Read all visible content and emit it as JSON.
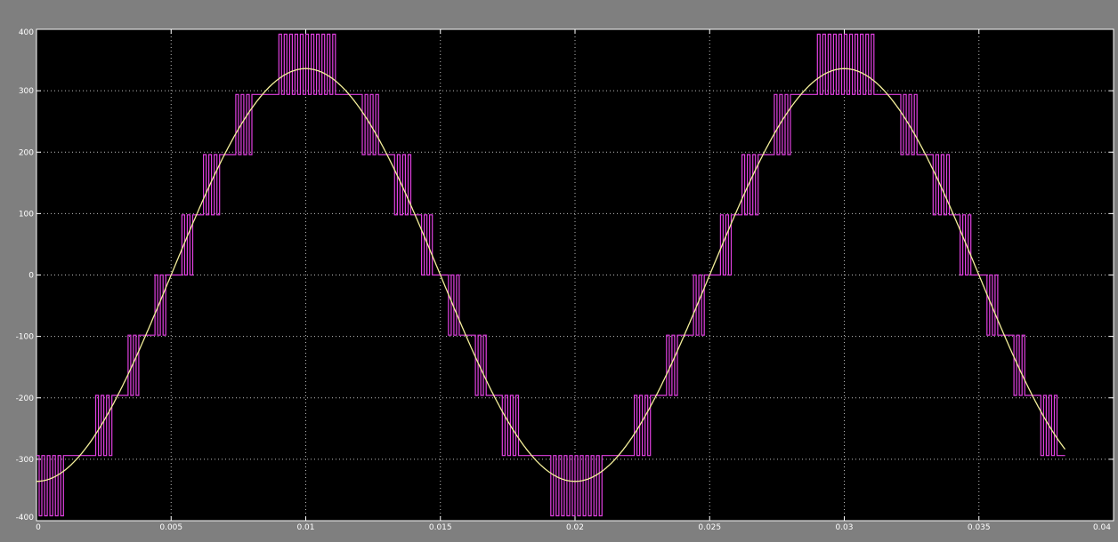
{
  "chart_data": {
    "type": "line",
    "title": "",
    "xlabel": "",
    "ylabel": "",
    "xlim": [
      0,
      0.04
    ],
    "ylim": [
      -400,
      400
    ],
    "grid": true,
    "x_ticks": [
      0,
      0.005,
      0.01,
      0.015,
      0.02,
      0.025,
      0.03,
      0.035,
      0.04
    ],
    "x_tick_labels": [
      "0",
      "0.005",
      "0.01",
      "0.015",
      "0.02",
      "0.025",
      "0.03",
      "0.035",
      "0.04"
    ],
    "y_ticks": [
      400,
      300,
      200,
      100,
      0,
      -100,
      -200,
      -300,
      -400
    ],
    "y_tick_labels": [
      "400",
      "300",
      "200",
      "100",
      "0",
      "-100",
      "-200",
      "-300",
      "-400"
    ],
    "series": [
      {
        "kind": "multilevel-pwm",
        "color": "#e040e0",
        "x_start": 0,
        "x_end": 0.0382,
        "step": 0.0001,
        "levels": [
          -392,
          -294,
          -196,
          -98,
          0,
          98,
          196,
          294,
          392
        ],
        "reference_amplitude": 336,
        "frequency_hz": 50,
        "phase": "negative-cosine"
      },
      {
        "kind": "sine",
        "color": "#f4ef9a",
        "x_start": 0,
        "x_end": 0.0382,
        "amplitude": 336,
        "frequency_hz": 50,
        "phase": "negative-cosine"
      }
    ]
  },
  "colors": {
    "frame": "#7f7f7f",
    "plot_background": "#000000",
    "grid": "#bdbdbd",
    "axis_text": "#ffffff"
  }
}
